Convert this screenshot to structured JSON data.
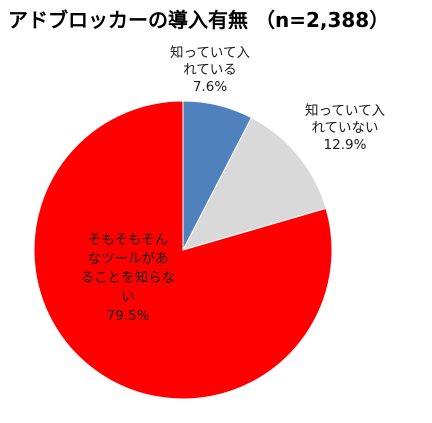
{
  "chart_data": {
    "type": "pie",
    "title": "アドブロッカーの導入有無 （n=2,388）",
    "start_angle_deg": 0,
    "direction": "clockwise",
    "slices": [
      {
        "label_lines": [
          "知っていて入",
          "れている"
        ],
        "value": 7.6,
        "value_label": "7.6%",
        "color": "#4f81bd"
      },
      {
        "label_lines": [
          "知っていて入",
          "れていない"
        ],
        "value": 12.9,
        "value_label": "12.9%",
        "color": "#d9d9d9"
      },
      {
        "label_lines": [
          "そもそもそん",
          "なツールがあ",
          "ることを知らな",
          "い"
        ],
        "value": 79.5,
        "value_label": "79.5%",
        "color": "#ff0000"
      }
    ]
  }
}
